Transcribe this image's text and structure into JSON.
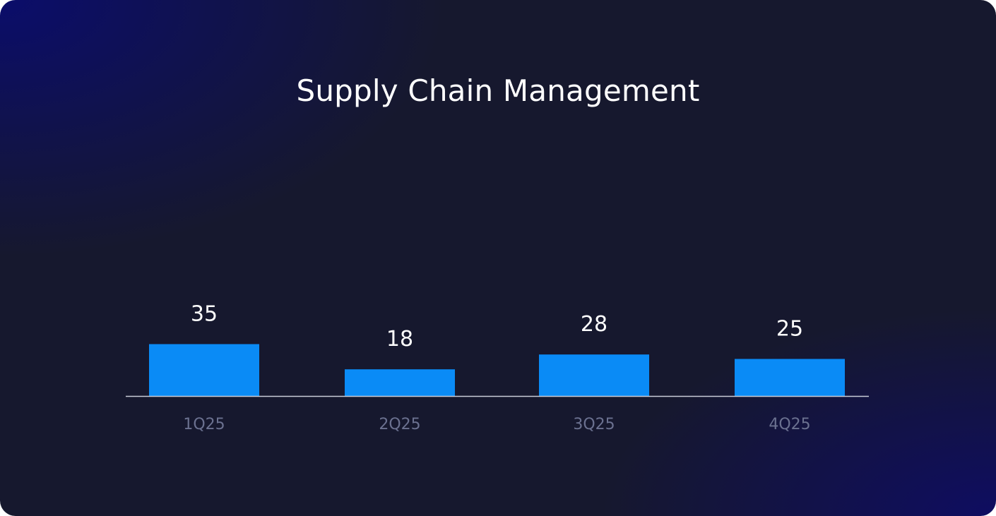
{
  "chart_data": {
    "type": "bar",
    "title": "Supply Chain Management",
    "categories": [
      "1Q25",
      "2Q25",
      "3Q25",
      "4Q25"
    ],
    "values": [
      35,
      18,
      28,
      25
    ],
    "xlabel": "",
    "ylabel": "",
    "grid": false,
    "legend": "none",
    "colors": {
      "bar": "#0a8bf6",
      "axis": "#c9ccd8",
      "value_label": "#ffffff",
      "category_label": "#6b7190",
      "background_start": "#0a0c6e",
      "background_mid": "#16182e",
      "background_end": "#0e0c64"
    }
  }
}
